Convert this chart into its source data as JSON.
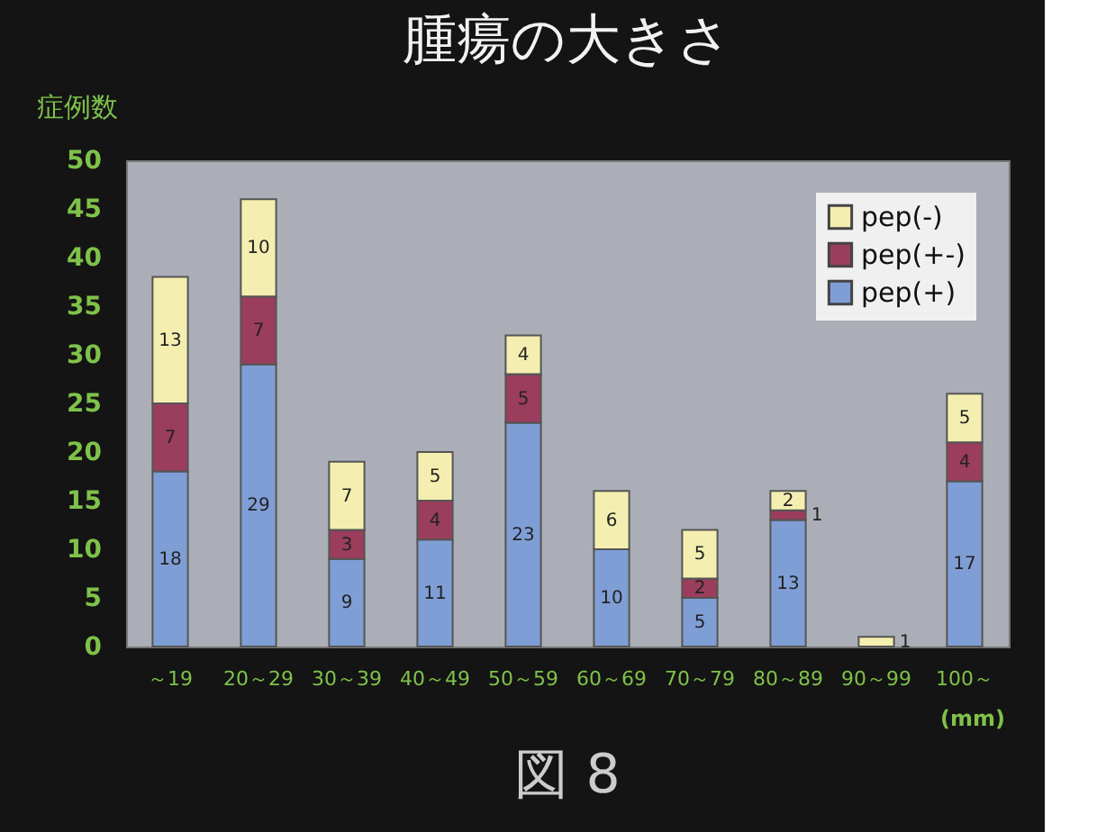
{
  "chart_data": {
    "type": "bar",
    "stacked": true,
    "title": "腫瘍の大きさ",
    "ylabel": "症例数",
    "categories": [
      "～19",
      "20～29",
      "30～39",
      "40～49",
      "50～59",
      "60～69",
      "70～79",
      "80～89",
      "90～99",
      "100～"
    ],
    "series": [
      {
        "name": "pep(+)",
        "color": "#7f9ed6",
        "values": [
          18,
          29,
          9,
          11,
          23,
          10,
          5,
          13,
          0,
          17
        ],
        "value_labels": [
          "18",
          "29",
          "9",
          "11",
          "23",
          "10",
          "5",
          "13",
          null,
          "17"
        ]
      },
      {
        "name": "pep(+-)",
        "color": "#9b3d5c",
        "values": [
          7,
          7,
          3,
          4,
          5,
          0,
          2,
          1,
          0,
          4
        ],
        "value_labels": [
          "7",
          "7",
          "3",
          "4",
          "5",
          null,
          "2",
          "1",
          null,
          "4"
        ]
      },
      {
        "name": "pep(-)",
        "color": "#f4efb0",
        "values": [
          13,
          10,
          7,
          5,
          4,
          6,
          5,
          2,
          1,
          5
        ],
        "value_labels": [
          "13",
          "10",
          "7",
          "5",
          "4",
          "6",
          "5",
          "2",
          "1",
          "5"
        ]
      }
    ],
    "ylim": [
      0,
      50
    ],
    "yticks": [
      0,
      5,
      10,
      15,
      20,
      25,
      30,
      35,
      40,
      45,
      50
    ],
    "legend": "top right",
    "grid": false,
    "annotations": [
      "(mm)",
      "図 8"
    ]
  }
}
